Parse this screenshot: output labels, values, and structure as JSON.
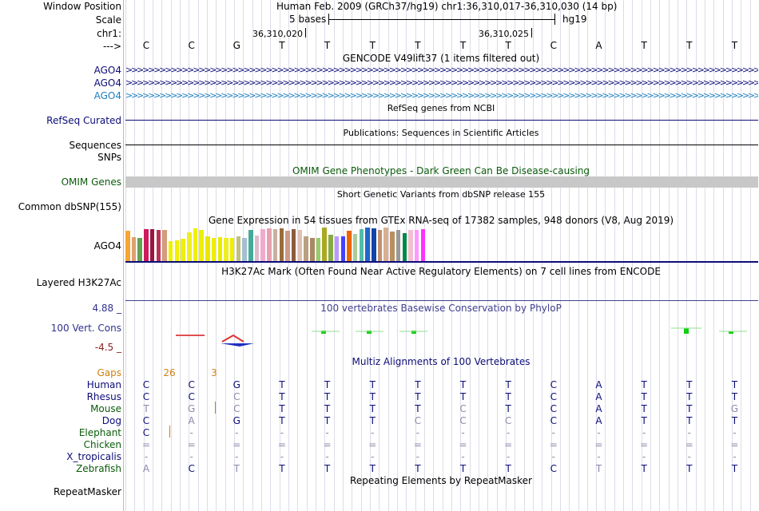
{
  "colors": {
    "navy": "#0c0c78",
    "ago4_light": "#1b7fc0",
    "omim": "#0a5b0a",
    "omim_bar": "#c8c8c8",
    "cons_blue": "#404090",
    "cons_green": "#10d010",
    "max_label": "#303090",
    "min_label": "#8a2020",
    "gaps": "#d08010",
    "dim_base": "#8a8aaa"
  },
  "header": {
    "window_position_label": "Window Position",
    "window_position_value": "Human Feb. 2009 (GRCh37/hg19)   chr1:36,310,017-36,310,030 (14 bp)",
    "scale_label": "Scale",
    "scale_bases": "5 bases",
    "scale_assembly": "hg19",
    "chr_label": "chr1:",
    "coord_1": "36,310,020",
    "coord_2": "36,310,025",
    "strand_label": "--->"
  },
  "sequence": [
    "C",
    "C",
    "G",
    "T",
    "T",
    "T",
    "T",
    "T",
    "T",
    "C",
    "A",
    "T",
    "T",
    "T"
  ],
  "tracks": {
    "gencode": {
      "title": "GENCODE V49lift37 (1 items filtered out)",
      "rows": [
        {
          "label": "AGO4",
          "style": "dark"
        },
        {
          "label": "AGO4",
          "style": "dark"
        },
        {
          "label": "AGO4",
          "style": "light"
        }
      ]
    },
    "refseq": {
      "title": "RefSeq genes from NCBI",
      "label": "RefSeq Curated"
    },
    "publications": {
      "title": "Publications: Sequences in Scientific Articles",
      "label": "Sequences"
    },
    "snps": {
      "label": "SNPs"
    },
    "omim": {
      "title": "OMIM Gene Phenotypes - Dark Green Can Be Disease-causing",
      "label": "OMIM Genes"
    },
    "dbsnp": {
      "title": "Short Genetic Variants from dbSNP release 155",
      "label": "Common dbSNP(155)"
    },
    "gtex": {
      "title": "Gene Expression in 54 tissues from GTEx RNA-seq of 17382 samples, 948 donors (V8, Aug 2019)",
      "label": "AGO4",
      "bars": [
        {
          "c": "#f7a535",
          "v": 0.9
        },
        {
          "c": "#e0a070",
          "v": 0.72
        },
        {
          "c": "#66a050",
          "v": 0.68
        },
        {
          "c": "#cc1a5c",
          "v": 0.95
        },
        {
          "c": "#991640",
          "v": 0.95
        },
        {
          "c": "#bb3355",
          "v": 0.92
        },
        {
          "c": "#d49c7a",
          "v": 0.92
        },
        {
          "c": "#f0f000",
          "v": 0.6
        },
        {
          "c": "#f0f000",
          "v": 0.62
        },
        {
          "c": "#eeee10",
          "v": 0.66
        },
        {
          "c": "#eeee22",
          "v": 0.85
        },
        {
          "c": "#f0f000",
          "v": 0.98
        },
        {
          "c": "#eeee00",
          "v": 0.92
        },
        {
          "c": "#e8e800",
          "v": 0.74
        },
        {
          "c": "#eeee00",
          "v": 0.68
        },
        {
          "c": "#eaea00",
          "v": 0.72
        },
        {
          "c": "#eeee22",
          "v": 0.7
        },
        {
          "c": "#eeee00",
          "v": 0.7
        },
        {
          "c": "#c0c080",
          "v": 0.74
        },
        {
          "c": "#a2c0d0",
          "v": 0.68
        },
        {
          "c": "#44aa99",
          "v": 0.92
        },
        {
          "c": "#ddbbcc",
          "v": 0.76
        },
        {
          "c": "#f2aacc",
          "v": 0.95
        },
        {
          "c": "#e8a0b0",
          "v": 0.98
        },
        {
          "c": "#c8b0a0",
          "v": 0.96
        },
        {
          "c": "#9a6b3a",
          "v": 0.98
        },
        {
          "c": "#cc9a88",
          "v": 0.9
        },
        {
          "c": "#8b5b3b",
          "v": 0.96
        },
        {
          "c": "#e0c0b0",
          "v": 0.92
        },
        {
          "c": "#bba080",
          "v": 0.74
        },
        {
          "c": "#aa8866",
          "v": 0.7
        },
        {
          "c": "#99cc66",
          "v": 0.7
        },
        {
          "c": "#aaaa22",
          "v": 0.99
        },
        {
          "c": "#88aa44",
          "v": 0.78
        },
        {
          "c": "#bb99ff",
          "v": 0.74
        },
        {
          "c": "#4444ff",
          "v": 0.74
        },
        {
          "c": "#ee6600",
          "v": 0.9
        },
        {
          "c": "#aacc99",
          "v": 0.82
        },
        {
          "c": "#55bbaa",
          "v": 0.96
        },
        {
          "c": "#2266cc",
          "v": 1.0
        },
        {
          "c": "#1144aa",
          "v": 0.98
        },
        {
          "c": "#c09070",
          "v": 0.94
        },
        {
          "c": "#d8b090",
          "v": 1.0
        },
        {
          "c": "#b89060",
          "v": 0.88
        },
        {
          "c": "#999999",
          "v": 0.92
        },
        {
          "c": "#008844",
          "v": 0.84
        },
        {
          "c": "#f0c0d0",
          "v": 0.94
        },
        {
          "c": "#ff99ff",
          "v": 0.94
        },
        {
          "c": "#ff33ff",
          "v": 0.95
        }
      ]
    },
    "h3k27ac": {
      "title": "H3K27Ac Mark (Often Found Near Active Regulatory Elements) on 7 cell lines from ENCODE",
      "label": "Layered H3K27Ac"
    },
    "conservation": {
      "title": "100 vertebrates Basewise Conservation by PhyloP",
      "label": "100 Vert. Cons",
      "max": "4.88 _",
      "min": "-4.5 _"
    },
    "multiz": {
      "title": "Multiz Alignments of 100 Vertebrates",
      "gaps_label": "Gaps",
      "gap_values": [
        {
          "col": 1,
          "text": "26"
        },
        {
          "col": 2,
          "text": "3"
        }
      ],
      "species": [
        {
          "name": "Human",
          "bases": [
            "C",
            "C",
            "G",
            "T",
            "T",
            "T",
            "T",
            "T",
            "T",
            "C",
            "A",
            "T",
            "T",
            "T"
          ],
          "dim": []
        },
        {
          "name": "Rhesus",
          "bases": [
            "C",
            "C",
            "C",
            "T",
            "T",
            "T",
            "T",
            "T",
            "T",
            "C",
            "A",
            "T",
            "T",
            "T"
          ],
          "dim": [
            2
          ]
        },
        {
          "name": "Mouse",
          "bases": [
            "T",
            "G",
            "C",
            "T",
            "T",
            "T",
            "T",
            "C",
            "T",
            "C",
            "A",
            "T",
            "T",
            "G"
          ],
          "dim": [
            0,
            1,
            2,
            7,
            13
          ]
        },
        {
          "name": "Dog",
          "bases": [
            "C",
            "A",
            "G",
            "T",
            "T",
            "T",
            "C",
            "C",
            "C",
            "C",
            "A",
            "T",
            "T",
            "T"
          ],
          "dim": [
            1,
            6,
            7,
            8
          ]
        },
        {
          "name": "Elephant",
          "bases": [
            "C",
            "-",
            "-",
            "-",
            "-",
            "-",
            "-",
            "-",
            "-",
            "-",
            "-",
            "-",
            "-",
            "-"
          ],
          "dim": [
            1,
            2,
            3,
            4,
            5,
            6,
            7,
            8,
            9,
            10,
            11,
            12,
            13
          ]
        },
        {
          "name": "Chicken",
          "bases": [
            "=",
            "=",
            "=",
            "=",
            "=",
            "=",
            "=",
            "=",
            "=",
            "=",
            "=",
            "=",
            "=",
            "="
          ],
          "dim": [
            0,
            1,
            2,
            3,
            4,
            5,
            6,
            7,
            8,
            9,
            10,
            11,
            12,
            13
          ]
        },
        {
          "name": "X_tropicalis",
          "bases": [
            "-",
            "-",
            "-",
            "-",
            "-",
            "-",
            "-",
            "-",
            "-",
            "-",
            "-",
            "-",
            "-",
            "-"
          ],
          "dim": [
            0,
            1,
            2,
            3,
            4,
            5,
            6,
            7,
            8,
            9,
            10,
            11,
            12,
            13
          ]
        },
        {
          "name": "Zebrafish",
          "bases": [
            "A",
            "C",
            "T",
            "T",
            "T",
            "T",
            "T",
            "T",
            "T",
            "C",
            "T",
            "T",
            "T",
            "T"
          ],
          "dim": [
            0,
            2,
            10
          ]
        }
      ]
    },
    "repeatmasker": {
      "title": "Repeating Elements by RepeatMasker",
      "label": "RepeatMasker"
    }
  }
}
